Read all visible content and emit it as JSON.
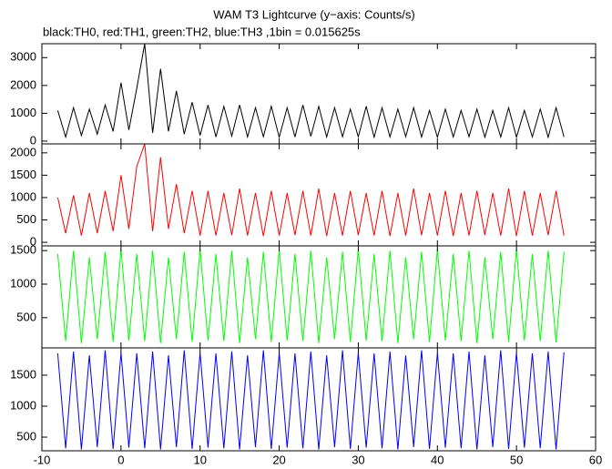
{
  "title": "WAM T3 Lightcurve (y−axis: Counts/s)",
  "subtitle": "black:TH0, red:TH1, green:TH2, blue:TH3 ,1bin = 0.015625s",
  "chart_data": [
    {
      "type": "line",
      "color": "#000000",
      "xlim": [
        -10,
        60
      ],
      "ylim": [
        -100,
        3500
      ],
      "yticks": [
        0,
        1000,
        2000,
        3000
      ],
      "x": [
        -8,
        -7,
        -6,
        -5,
        -4,
        -3,
        -2,
        -1,
        0,
        1,
        2,
        3,
        4,
        5,
        6,
        7,
        8,
        9,
        10,
        11,
        12,
        13,
        14,
        15,
        16,
        17,
        18,
        19,
        20,
        21,
        22,
        23,
        24,
        25,
        26,
        27,
        28,
        29,
        30,
        31,
        32,
        33,
        34,
        35,
        36,
        37,
        38,
        39,
        40,
        41,
        42,
        43,
        44,
        45,
        46,
        47,
        48,
        49,
        50,
        51,
        52,
        53,
        54,
        55,
        56
      ],
      "values": [
        1100,
        150,
        1200,
        200,
        1150,
        250,
        1300,
        350,
        2100,
        400,
        1900,
        3500,
        300,
        2600,
        350,
        1800,
        250,
        1400,
        200,
        1300,
        150,
        1250,
        180,
        1300,
        150,
        1200,
        160,
        1250,
        140,
        1200,
        150,
        1300,
        170,
        1250,
        150,
        1200,
        160,
        1150,
        150,
        1250,
        140,
        1200,
        150,
        1150,
        160,
        1200,
        150,
        1100,
        140,
        1150,
        150,
        1100,
        160,
        1150,
        140,
        1100,
        150,
        1200,
        140,
        1100,
        150,
        1150,
        140,
        1200,
        150
      ]
    },
    {
      "type": "line",
      "color": "#ff0000",
      "xlim": [
        -10,
        60
      ],
      "ylim": [
        -80,
        2200
      ],
      "yticks": [
        0,
        500,
        1000,
        1500,
        2000
      ],
      "x": [
        -8,
        -7,
        -6,
        -5,
        -4,
        -3,
        -2,
        -1,
        0,
        1,
        2,
        3,
        4,
        5,
        6,
        7,
        8,
        9,
        10,
        11,
        12,
        13,
        14,
        15,
        16,
        17,
        18,
        19,
        20,
        21,
        22,
        23,
        24,
        25,
        26,
        27,
        28,
        29,
        30,
        31,
        32,
        33,
        34,
        35,
        36,
        37,
        38,
        39,
        40,
        41,
        42,
        43,
        44,
        45,
        46,
        47,
        48,
        49,
        50,
        51,
        52,
        53,
        54,
        55,
        56
      ],
      "values": [
        1000,
        200,
        1050,
        150,
        1100,
        200,
        1150,
        250,
        1500,
        300,
        1700,
        2200,
        250,
        1900,
        300,
        1300,
        200,
        1150,
        150,
        1150,
        150,
        1100,
        160,
        1200,
        150,
        1100,
        140,
        1150,
        150,
        1100,
        160,
        1150,
        150,
        1200,
        140,
        1100,
        150,
        1150,
        160,
        1100,
        150,
        1150,
        140,
        1100,
        150,
        1200,
        160,
        1100,
        150,
        1150,
        140,
        1100,
        150,
        1150,
        160,
        1100,
        150,
        1200,
        140,
        1150,
        150,
        1100,
        160,
        1150,
        150
      ]
    },
    {
      "type": "line",
      "color": "#00ff00",
      "xlim": [
        -10,
        60
      ],
      "ylim": [
        50,
        1570
      ],
      "yticks": [
        500,
        1000,
        1500
      ],
      "x": [
        -8,
        -7,
        -6,
        -5,
        -4,
        -3,
        -2,
        -1,
        0,
        1,
        2,
        3,
        4,
        5,
        6,
        7,
        8,
        9,
        10,
        11,
        12,
        13,
        14,
        15,
        16,
        17,
        18,
        19,
        20,
        21,
        22,
        23,
        24,
        25,
        26,
        27,
        28,
        29,
        30,
        31,
        32,
        33,
        34,
        35,
        36,
        37,
        38,
        39,
        40,
        41,
        42,
        43,
        44,
        45,
        46,
        47,
        48,
        49,
        50,
        51,
        52,
        53,
        54,
        55,
        56
      ],
      "values": [
        1450,
        150,
        1500,
        120,
        1400,
        180,
        1480,
        140,
        1520,
        160,
        1450,
        150,
        1500,
        120,
        1400,
        180,
        1480,
        140,
        1520,
        160,
        1450,
        150,
        1500,
        120,
        1400,
        180,
        1480,
        140,
        1520,
        160,
        1450,
        150,
        1500,
        120,
        1400,
        180,
        1480,
        140,
        1520,
        160,
        1450,
        150,
        1500,
        120,
        1400,
        180,
        1480,
        140,
        1520,
        160,
        1450,
        150,
        1500,
        120,
        1400,
        180,
        1480,
        140,
        1520,
        160,
        1450,
        150,
        1500,
        130,
        1480
      ]
    },
    {
      "type": "line",
      "color": "#0000ff",
      "xlim": [
        -10,
        60
      ],
      "ylim": [
        280,
        1940
      ],
      "yticks": [
        500,
        1000,
        1500
      ],
      "xticks": [
        -10,
        0,
        10,
        20,
        30,
        40,
        50,
        60
      ],
      "x": [
        -8,
        -7,
        -6,
        -5,
        -4,
        -3,
        -2,
        -1,
        0,
        1,
        2,
        3,
        4,
        5,
        6,
        7,
        8,
        9,
        10,
        11,
        12,
        13,
        14,
        15,
        16,
        17,
        18,
        19,
        20,
        21,
        22,
        23,
        24,
        25,
        26,
        27,
        28,
        29,
        30,
        31,
        32,
        33,
        34,
        35,
        36,
        37,
        38,
        39,
        40,
        41,
        42,
        43,
        44,
        45,
        46,
        47,
        48,
        49,
        50,
        51,
        52,
        53,
        54,
        55,
        56
      ],
      "values": [
        1850,
        320,
        1880,
        300,
        1820,
        340,
        1900,
        310,
        1860,
        330,
        1850,
        320,
        1880,
        300,
        1820,
        340,
        1900,
        310,
        1860,
        330,
        1850,
        320,
        1880,
        300,
        1820,
        340,
        1900,
        310,
        1860,
        330,
        1850,
        320,
        1880,
        300,
        1820,
        340,
        1900,
        310,
        1860,
        330,
        1850,
        320,
        1880,
        300,
        1820,
        340,
        1900,
        310,
        1860,
        330,
        1850,
        320,
        1880,
        300,
        1820,
        340,
        1900,
        310,
        1860,
        330,
        1850,
        320,
        1880,
        300,
        1870
      ]
    }
  ]
}
